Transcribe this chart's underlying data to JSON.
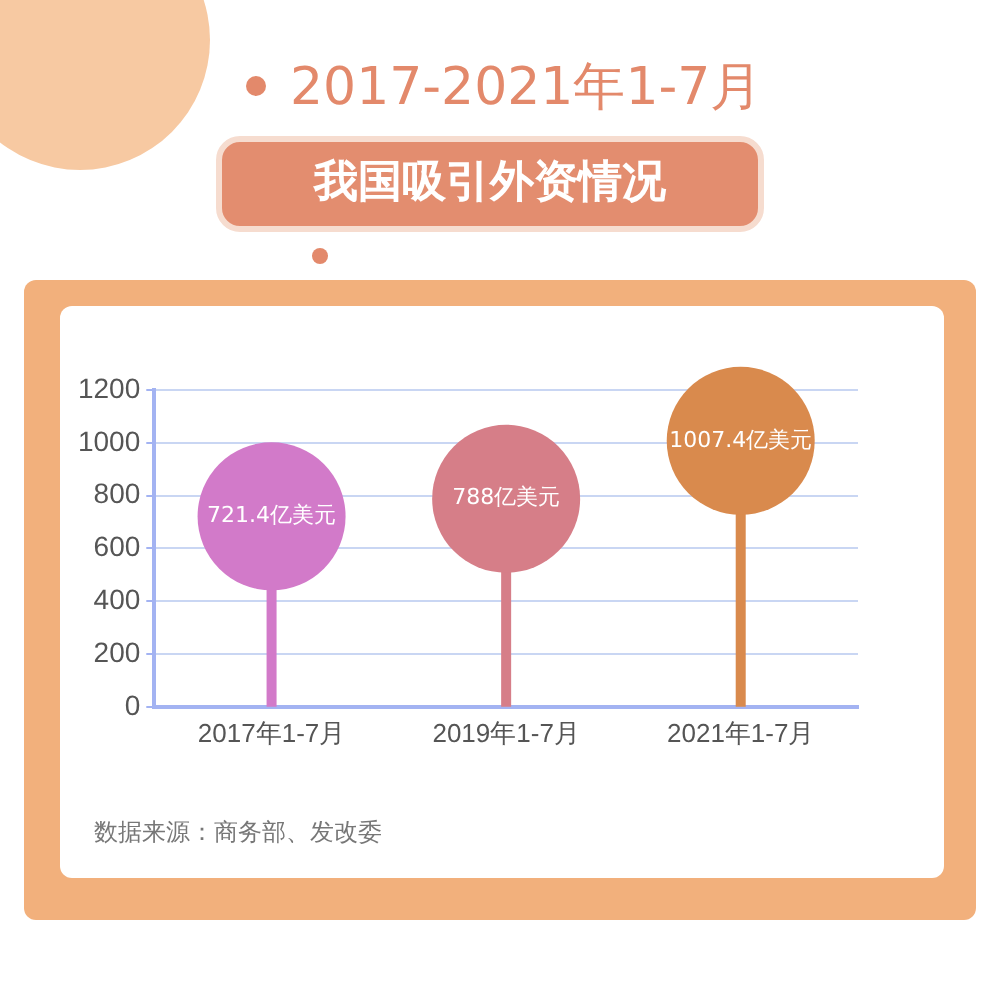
{
  "chart_data": {
    "type": "lollipop",
    "title": "2017-2021年1-7月",
    "subtitle": "我国吸引外资情况",
    "categories": [
      "2017年1-7月",
      "2019年1-7月",
      "2021年1-7月"
    ],
    "values": [
      721.4,
      788,
      1007.4
    ],
    "colors": [
      "#d27ac9",
      "#d67e88",
      "#d98a4d"
    ],
    "value_labels": [
      "721.4亿美元",
      "788亿美元",
      "1007.4亿美元"
    ],
    "ylim": [
      0,
      1200
    ],
    "yticks": [
      0,
      200,
      400,
      600,
      800,
      1000,
      1200
    ],
    "grid": "y",
    "marker": "circle",
    "annotations": [
      "数据来源：商务部、发改委"
    ]
  }
}
